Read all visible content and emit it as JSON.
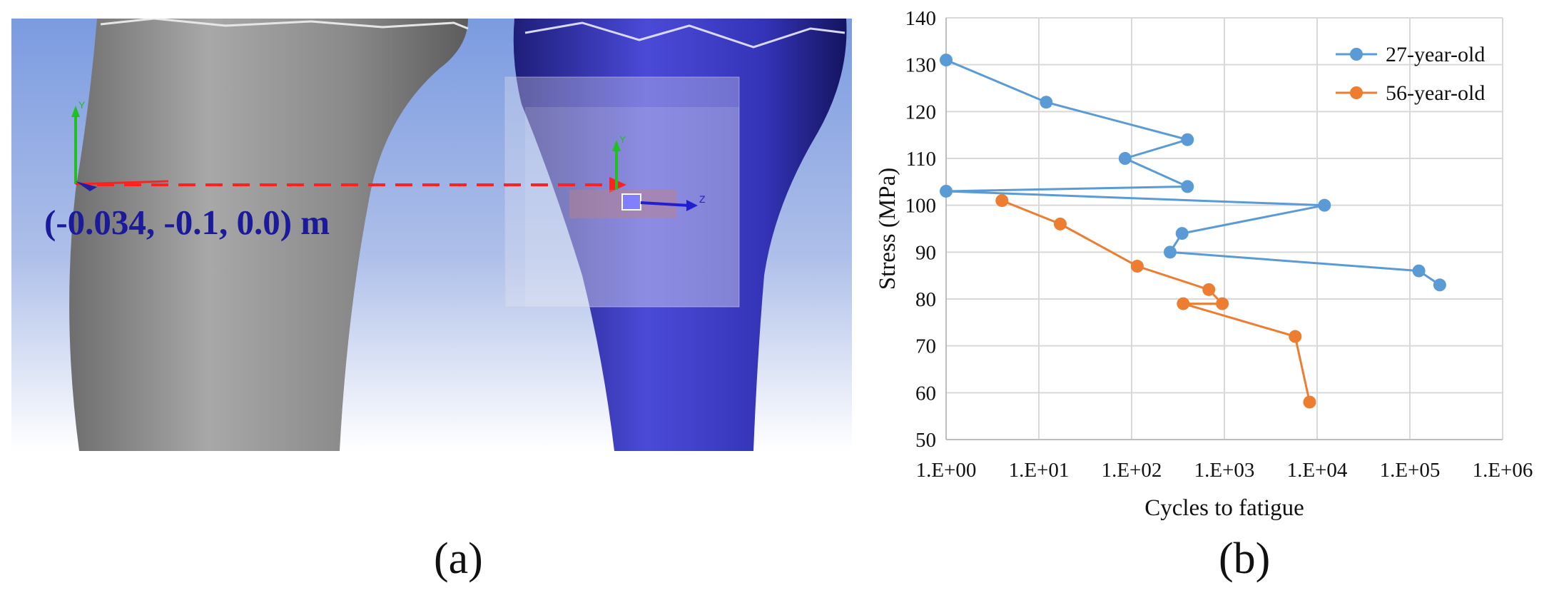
{
  "panel_a": {
    "coordinate_label": "(-0.034, -0.1, 0.0) m",
    "axis_labels": {
      "y": "Y",
      "z": "Z"
    },
    "colors": {
      "background_top": "#7b9be0",
      "background_bottom": "#ffffff",
      "left_bone": "#9a9a9a",
      "right_bone": "#3c3cc8",
      "arrow": "#ff2020",
      "label": "#1a1a9a"
    }
  },
  "captions": {
    "a": "(a)",
    "b": "(b)"
  },
  "chart_data": {
    "type": "scatter",
    "xlabel": "Cycles to fatigue",
    "ylabel": "Stress (MPa)",
    "x_scale": "log",
    "xlim": [
      1,
      1000000
    ],
    "ylim": [
      50,
      140
    ],
    "x_ticks": [
      "1.E+00",
      "1.E+01",
      "1.E+02",
      "1.E+03",
      "1.E+04",
      "1.E+05",
      "1.E+06"
    ],
    "y_ticks": [
      50,
      60,
      70,
      80,
      90,
      100,
      110,
      120,
      130,
      140
    ],
    "grid": true,
    "legend_position": "top-right",
    "series": [
      {
        "name": "27-year-old",
        "color": "#5b9bd5",
        "points": [
          [
            1,
            131
          ],
          [
            12,
            122
          ],
          [
            400,
            114
          ],
          [
            85,
            110
          ],
          [
            400,
            104
          ],
          [
            1,
            103
          ],
          [
            12000,
            100
          ],
          [
            350,
            94
          ],
          [
            260,
            90
          ],
          [
            125000,
            86
          ],
          [
            210000,
            83
          ]
        ]
      },
      {
        "name": "56-year-old",
        "color": "#ed7d31",
        "points": [
          [
            4,
            101
          ],
          [
            17,
            96
          ],
          [
            115,
            87
          ],
          [
            680,
            82
          ],
          [
            950,
            79
          ],
          [
            360,
            79
          ],
          [
            5800,
            72
          ],
          [
            8300,
            58
          ]
        ]
      }
    ]
  }
}
